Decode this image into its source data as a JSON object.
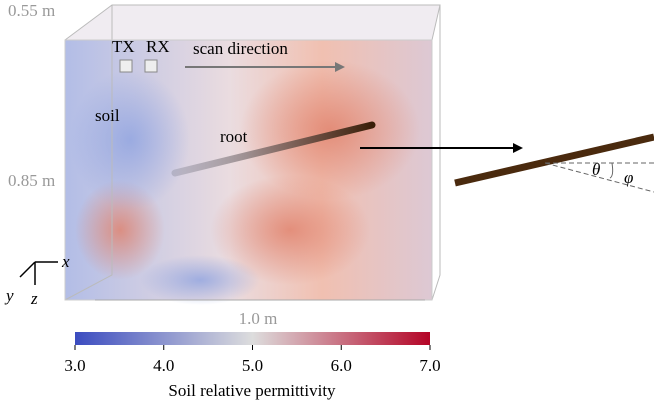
{
  "labels": {
    "height_top": "0.55 m",
    "height_side": "0.85 m",
    "width": "1.0 m",
    "tx": "TX",
    "rx": "RX",
    "scan": "scan direction",
    "soil": "soil",
    "root": "root",
    "theta": "θ",
    "phi": "φ",
    "axis_x": "x",
    "axis_y": "y",
    "axis_z": "z"
  },
  "colorbar": {
    "title": "Soil relative permittivity",
    "lim": [
      3,
      7
    ],
    "ticks": [
      {
        "value": 3,
        "label": "3.0"
      },
      {
        "value": 4,
        "label": "4.0"
      },
      {
        "value": 5,
        "label": "5.0"
      },
      {
        "value": 6,
        "label": "6.0"
      },
      {
        "value": 7,
        "label": "7.0"
      }
    ],
    "colors": [
      "#3b4cc0",
      "#dddddd",
      "#b40426"
    ]
  }
}
